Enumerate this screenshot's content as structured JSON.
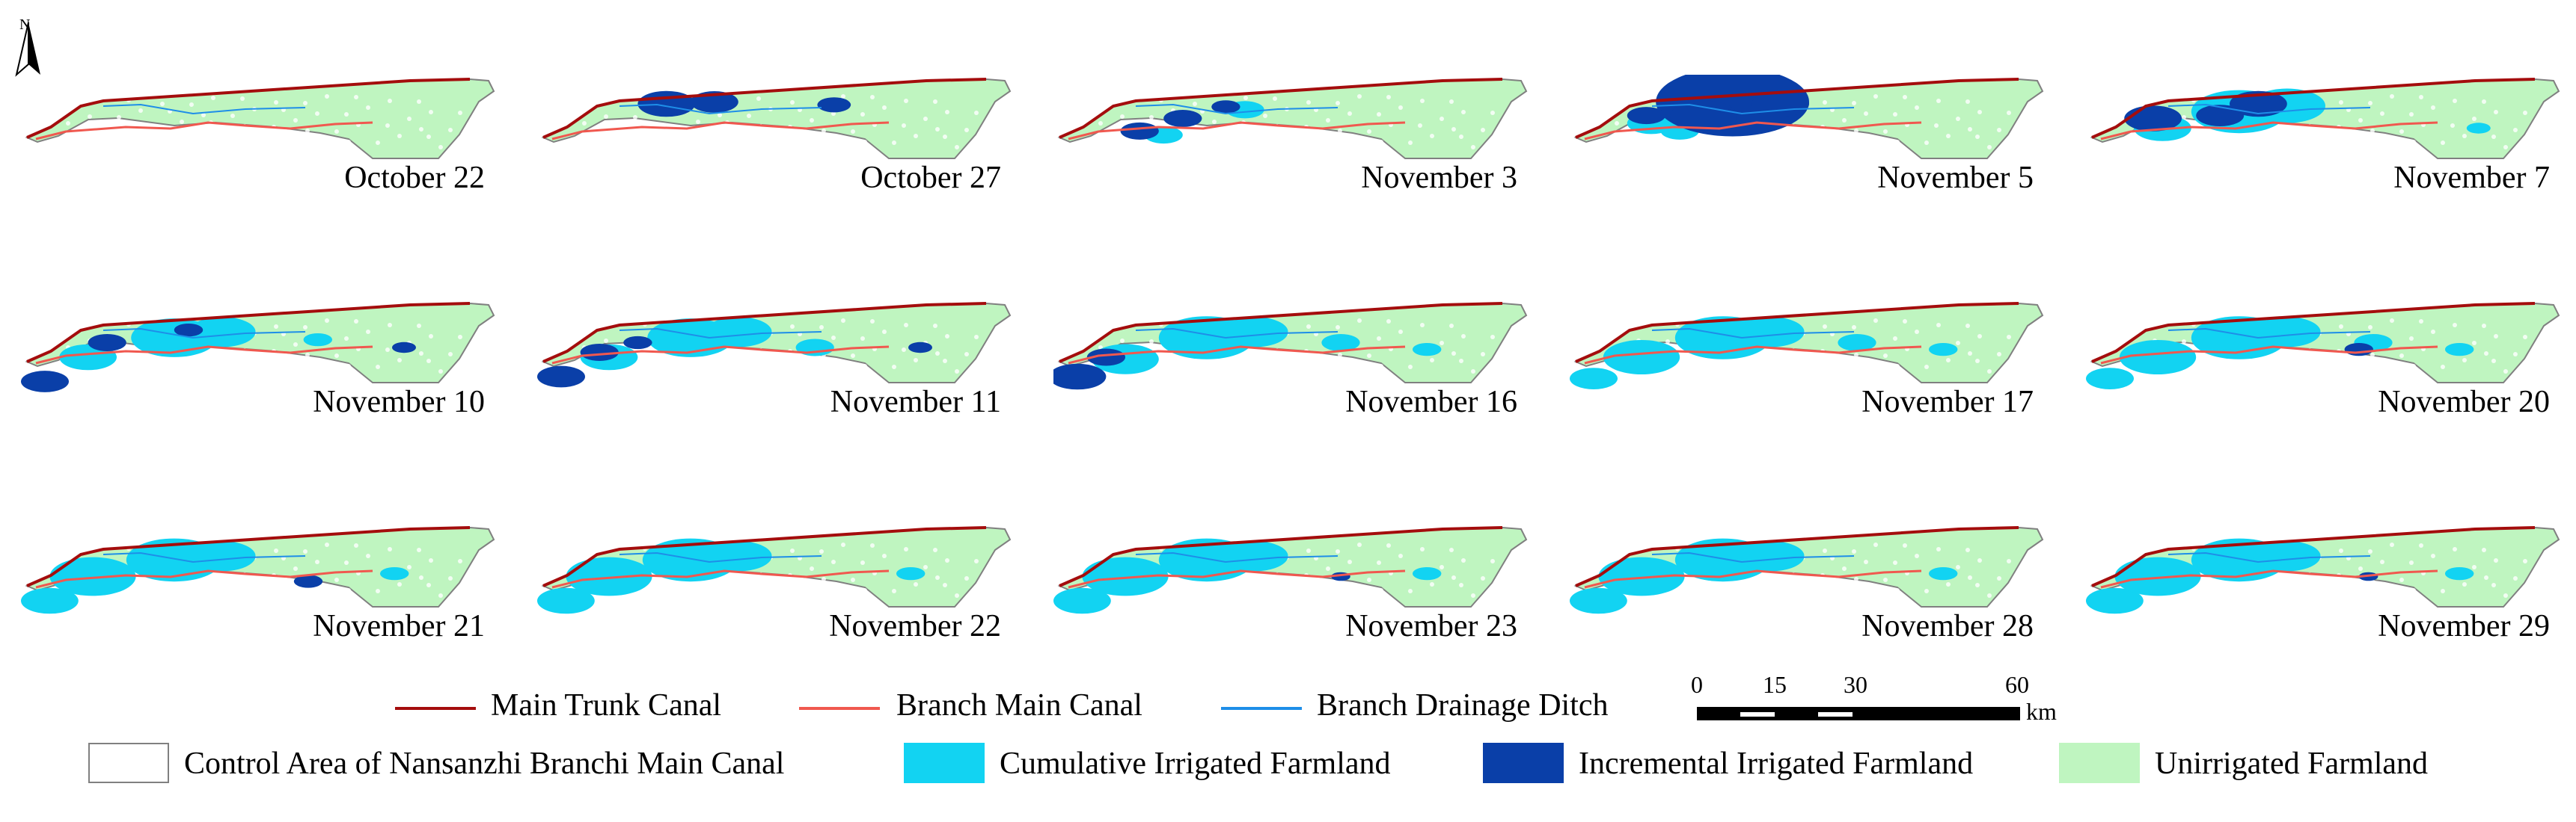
{
  "north_arrow": {
    "label": "N"
  },
  "colors": {
    "main_trunk_canal": "#a40d0d",
    "branch_main_canal": "#f0584f",
    "branch_drainage_ditch": "#1e8ee8",
    "cumulative_irrigated": "#12d3f2",
    "incremental_irrigated": "#0a3fa8",
    "unirrigated": "#bff5c0",
    "control_area_outline": "#808080"
  },
  "maps": [
    {
      "date": "October 22",
      "cumulative": [],
      "incremental": []
    },
    {
      "date": "October 27",
      "cumulative": [],
      "incremental": [
        [
          0.27,
          0.3,
          0.06
        ],
        [
          0.37,
          0.28,
          0.05
        ],
        [
          0.62,
          0.31,
          0.035
        ]
      ]
    },
    {
      "date": "November 3",
      "cumulative": [
        [
          0.23,
          0.62,
          0.04
        ],
        [
          0.4,
          0.36,
          0.04
        ]
      ],
      "incremental": [
        [
          0.18,
          0.58,
          0.04
        ],
        [
          0.27,
          0.45,
          0.04
        ],
        [
          0.36,
          0.33,
          0.03
        ]
      ]
    },
    {
      "date": "November 5",
      "cumulative": [
        [
          0.17,
          0.5,
          0.05
        ],
        [
          0.23,
          0.58,
          0.04
        ]
      ],
      "incremental": [
        [
          0.34,
          0.28,
          0.16
        ],
        [
          0.28,
          0.42,
          0.07
        ],
        [
          0.16,
          0.42,
          0.04
        ],
        [
          0.44,
          0.3,
          0.06
        ]
      ]
    },
    {
      "date": "November 7",
      "cumulative": [
        [
          0.16,
          0.55,
          0.06
        ],
        [
          0.32,
          0.38,
          0.1
        ],
        [
          0.42,
          0.32,
          0.08
        ],
        [
          0.82,
          0.55,
          0.025
        ]
      ],
      "incremental": [
        [
          0.14,
          0.45,
          0.06
        ],
        [
          0.28,
          0.42,
          0.05
        ],
        [
          0.36,
          0.3,
          0.06
        ]
      ]
    },
    {
      "date": "November 10",
      "cumulative": [
        [
          0.14,
          0.6,
          0.06
        ],
        [
          0.32,
          0.4,
          0.09
        ],
        [
          0.42,
          0.34,
          0.07
        ],
        [
          0.62,
          0.42,
          0.03
        ]
      ],
      "incremental": [
        [
          0.05,
          0.85,
          0.05
        ],
        [
          0.18,
          0.45,
          0.04
        ],
        [
          0.35,
          0.32,
          0.03
        ],
        [
          0.8,
          0.5,
          0.025
        ]
      ]
    },
    {
      "date": "November 11",
      "cumulative": [
        [
          0.15,
          0.6,
          0.06
        ],
        [
          0.32,
          0.4,
          0.09
        ],
        [
          0.42,
          0.34,
          0.07
        ],
        [
          0.58,
          0.5,
          0.04
        ]
      ],
      "incremental": [
        [
          0.05,
          0.8,
          0.05
        ],
        [
          0.13,
          0.55,
          0.04
        ],
        [
          0.21,
          0.45,
          0.03
        ],
        [
          0.8,
          0.5,
          0.025
        ]
      ]
    },
    {
      "date": "November 16",
      "cumulative": [
        [
          0.15,
          0.62,
          0.07
        ],
        [
          0.32,
          0.4,
          0.1
        ],
        [
          0.42,
          0.34,
          0.07
        ],
        [
          0.6,
          0.45,
          0.04
        ],
        [
          0.78,
          0.52,
          0.03
        ]
      ],
      "incremental": [
        [
          0.05,
          0.8,
          0.06
        ],
        [
          0.11,
          0.6,
          0.04
        ]
      ]
    },
    {
      "date": "November 17",
      "cumulative": [
        [
          0.05,
          0.82,
          0.05
        ],
        [
          0.15,
          0.6,
          0.08
        ],
        [
          0.32,
          0.4,
          0.1
        ],
        [
          0.42,
          0.34,
          0.07
        ],
        [
          0.6,
          0.45,
          0.04
        ],
        [
          0.78,
          0.52,
          0.03
        ]
      ],
      "incremental": []
    },
    {
      "date": "November 20",
      "cumulative": [
        [
          0.05,
          0.82,
          0.05
        ],
        [
          0.15,
          0.6,
          0.08
        ],
        [
          0.32,
          0.4,
          0.1
        ],
        [
          0.42,
          0.34,
          0.07
        ],
        [
          0.6,
          0.45,
          0.04
        ],
        [
          0.78,
          0.52,
          0.03
        ]
      ],
      "incremental": [
        [
          0.57,
          0.52,
          0.03
        ]
      ]
    },
    {
      "date": "November 21",
      "cumulative": [
        [
          0.06,
          0.8,
          0.06
        ],
        [
          0.15,
          0.55,
          0.09
        ],
        [
          0.32,
          0.38,
          0.1
        ],
        [
          0.42,
          0.34,
          0.07
        ],
        [
          0.78,
          0.52,
          0.03
        ]
      ],
      "incremental": [
        [
          0.6,
          0.6,
          0.03
        ]
      ]
    },
    {
      "date": "November 22",
      "cumulative": [
        [
          0.06,
          0.8,
          0.06
        ],
        [
          0.15,
          0.55,
          0.09
        ],
        [
          0.32,
          0.38,
          0.1
        ],
        [
          0.42,
          0.34,
          0.07
        ],
        [
          0.78,
          0.52,
          0.03
        ]
      ],
      "incremental": []
    },
    {
      "date": "November 23",
      "cumulative": [
        [
          0.06,
          0.8,
          0.06
        ],
        [
          0.15,
          0.55,
          0.09
        ],
        [
          0.32,
          0.38,
          0.1
        ],
        [
          0.42,
          0.34,
          0.07
        ],
        [
          0.78,
          0.52,
          0.03
        ]
      ],
      "incremental": [
        [
          0.6,
          0.55,
          0.02
        ]
      ]
    },
    {
      "date": "November 28",
      "cumulative": [
        [
          0.06,
          0.8,
          0.06
        ],
        [
          0.15,
          0.55,
          0.09
        ],
        [
          0.32,
          0.38,
          0.1
        ],
        [
          0.42,
          0.34,
          0.07
        ],
        [
          0.78,
          0.52,
          0.03
        ]
      ],
      "incremental": []
    },
    {
      "date": "November 29",
      "cumulative": [
        [
          0.06,
          0.8,
          0.06
        ],
        [
          0.15,
          0.55,
          0.09
        ],
        [
          0.32,
          0.38,
          0.1
        ],
        [
          0.42,
          0.34,
          0.07
        ],
        [
          0.78,
          0.52,
          0.03
        ]
      ],
      "incremental": [
        [
          0.59,
          0.55,
          0.02
        ]
      ]
    }
  ],
  "legend": {
    "main_trunk_canal": "Main Trunk Canal",
    "branch_main_canal": "Branch Main Canal",
    "branch_drainage_ditch": "Branch Drainage Ditch",
    "control_area": "Control Area of Nansanzhi Branchi Main Canal",
    "cumulative_irrigated": "Cumulative Irrigated Farmland",
    "incremental_irrigated": "Incremental Irrigated Farmland",
    "unirrigated": "Unirrigated Farmland"
  },
  "scale_bar": {
    "ticks": [
      "0",
      "15",
      "30",
      "60"
    ],
    "unit": "km"
  }
}
